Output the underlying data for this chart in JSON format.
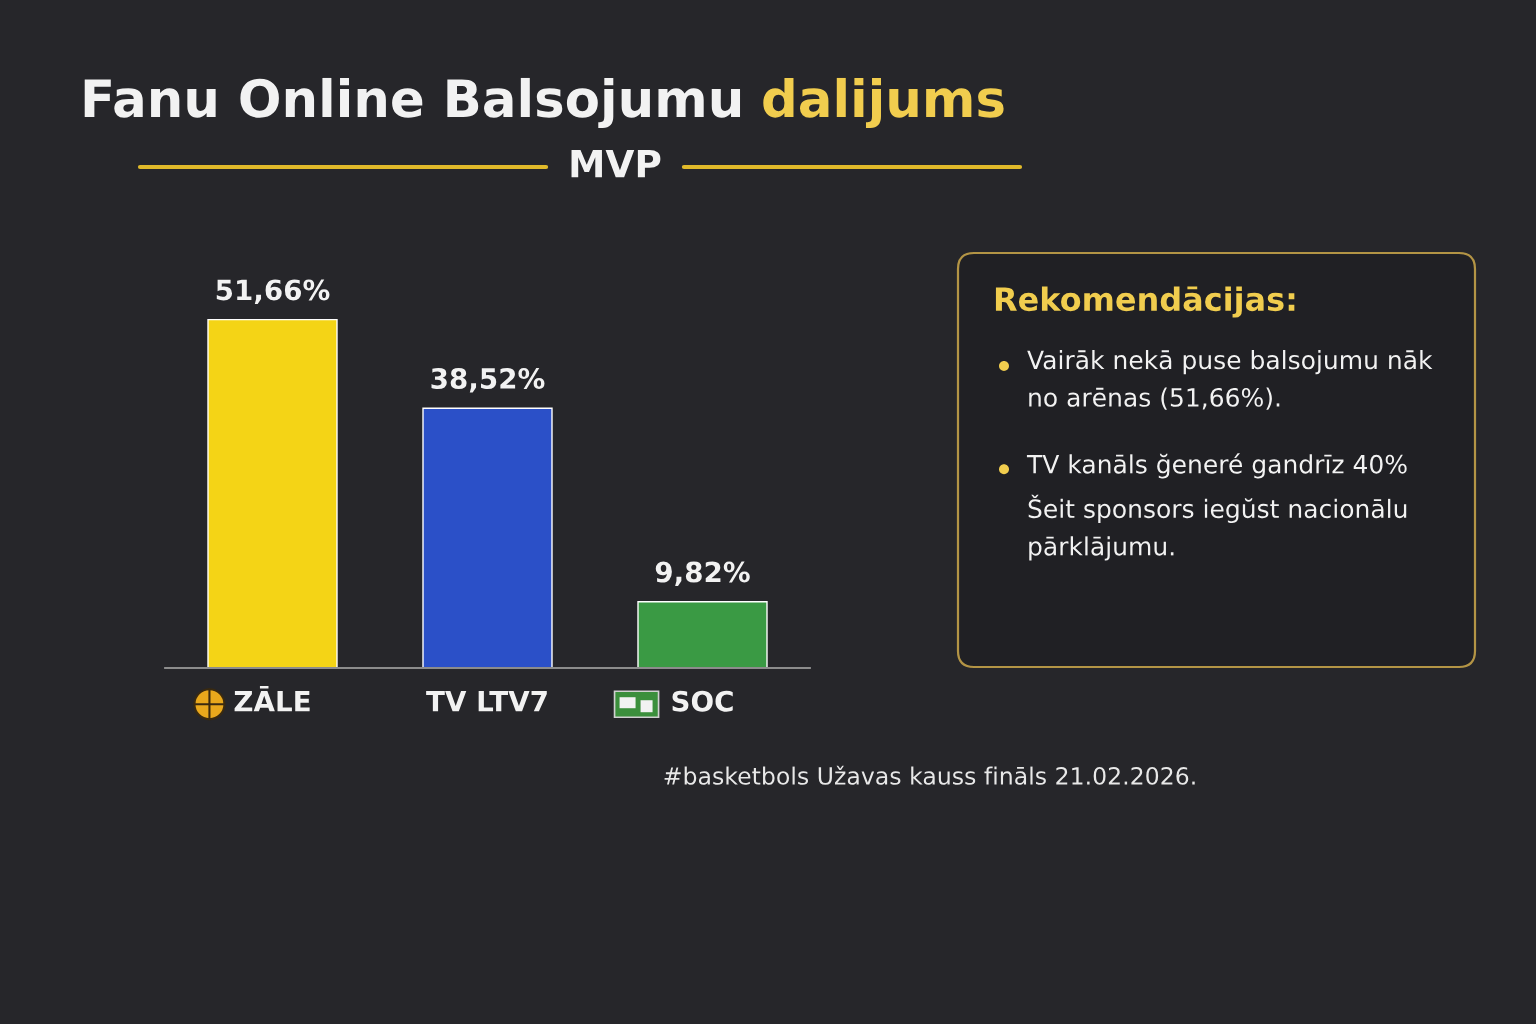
{
  "chart_data": [
    {
      "type": "bar",
      "title": "Fanu Online Balsojumu dalijums",
      "subtitle": "MVP",
      "categories": [
        "ZĀLE",
        "TV LTV7",
        "SOC"
      ],
      "values": [
        51.66,
        38.52,
        9.82
      ],
      "colors": [
        "#f4d416",
        "#2b50c8",
        "#3a9a44"
      ],
      "value_labels": [
        "51,66%",
        "38,52%",
        "9,82%"
      ],
      "annotations": [
        "#basketbols Užavas kauss fināls 21.02.2026."
      ]
    },
    {
      "type": "other",
      "title": "Rekomendācijas:",
      "annotations": [
        "Vairāk nekā puse balsojumu nāk no arēnas (51,66%).",
        "TV kanāls ğeneré gandrīz 40% Šeit sponsors iegŭst nacionālu pārklājumu."
      ]
    }
  ]
}
